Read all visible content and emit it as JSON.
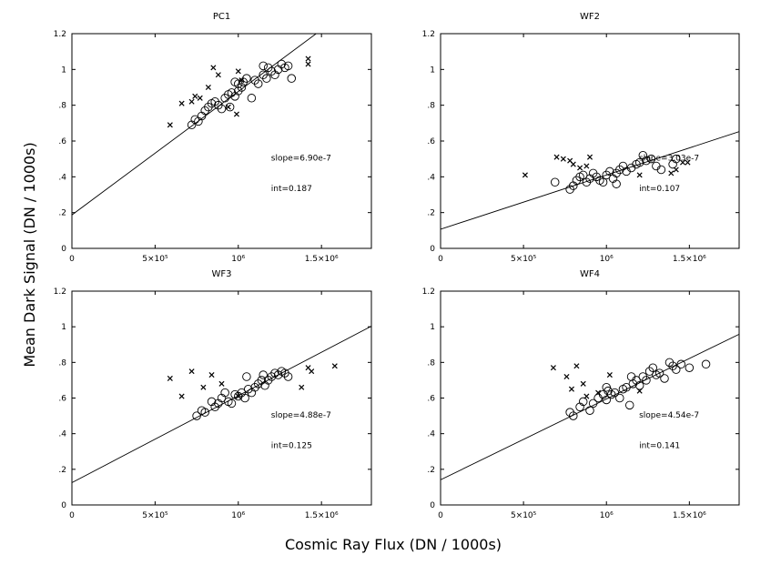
{
  "figure": {
    "xlabel": "Cosmic Ray Flux (DN / 1000s)",
    "ylabel": "Mean Dark Signal (DN / 1000s)"
  },
  "chart_data": [
    {
      "type": "scatter",
      "title": "PC1",
      "xlim": [
        0,
        1800000
      ],
      "ylim": [
        0,
        1.2
      ],
      "yticks": [
        "0",
        ".2",
        ".4",
        ".6",
        ".8",
        "1",
        "1.2"
      ],
      "xticks": [
        "0",
        "5×10⁵",
        "10⁶",
        "1.5×10⁶"
      ],
      "annotations": {
        "slope": "slope=6.90e-7",
        "int": "int=0.187"
      },
      "fit": {
        "slope": 6.9e-07,
        "intercept": 0.187
      },
      "series": [
        {
          "name": "circles",
          "marker": "circle",
          "points": [
            [
              720000,
              0.69
            ],
            [
              740000,
              0.72
            ],
            [
              760000,
              0.71
            ],
            [
              780000,
              0.74
            ],
            [
              800000,
              0.77
            ],
            [
              820000,
              0.79
            ],
            [
              840000,
              0.81
            ],
            [
              860000,
              0.82
            ],
            [
              880000,
              0.8
            ],
            [
              900000,
              0.78
            ],
            [
              920000,
              0.84
            ],
            [
              940000,
              0.86
            ],
            [
              960000,
              0.87
            ],
            [
              980000,
              0.85
            ],
            [
              1000000,
              0.88
            ],
            [
              1000000,
              0.92
            ],
            [
              1020000,
              0.9
            ],
            [
              1030000,
              0.93
            ],
            [
              1050000,
              0.95
            ],
            [
              1080000,
              0.84
            ],
            [
              1100000,
              0.94
            ],
            [
              1120000,
              0.92
            ],
            [
              1150000,
              0.97
            ],
            [
              1170000,
              0.95
            ],
            [
              1180000,
              1.01
            ],
            [
              1200000,
              0.99
            ],
            [
              1220000,
              0.97
            ],
            [
              1240000,
              1.0
            ],
            [
              1260000,
              1.03
            ],
            [
              1280000,
              1.01
            ],
            [
              1300000,
              1.02
            ],
            [
              1320000,
              0.95
            ],
            [
              950000,
              0.79
            ],
            [
              980000,
              0.93
            ],
            [
              1150000,
              1.02
            ]
          ]
        },
        {
          "name": "crosses",
          "marker": "x",
          "points": [
            [
              590000,
              0.69
            ],
            [
              660000,
              0.81
            ],
            [
              720000,
              0.82
            ],
            [
              740000,
              0.85
            ],
            [
              770000,
              0.84
            ],
            [
              820000,
              0.9
            ],
            [
              850000,
              1.01
            ],
            [
              880000,
              0.97
            ],
            [
              940000,
              0.79
            ],
            [
              990000,
              0.75
            ],
            [
              1000000,
              0.99
            ],
            [
              1020000,
              0.94
            ],
            [
              1420000,
              1.06
            ],
            [
              1420000,
              1.03
            ]
          ]
        }
      ]
    },
    {
      "type": "scatter",
      "title": "WF2",
      "xlim": [
        0,
        1800000
      ],
      "ylim": [
        0,
        1.2
      ],
      "yticks": [
        "0",
        ".2",
        ".4",
        ".6",
        ".8",
        "1",
        "1.2"
      ],
      "xticks": [
        "0",
        "5×10⁵",
        "10⁶",
        "1.5×10⁶"
      ],
      "annotations": {
        "slope": "slope=3.03e-7",
        "int": "int=0.107"
      },
      "fit": {
        "slope": 3.03e-07,
        "intercept": 0.107
      },
      "series": [
        {
          "name": "circles",
          "marker": "circle",
          "points": [
            [
              690000,
              0.37
            ],
            [
              780000,
              0.33
            ],
            [
              800000,
              0.35
            ],
            [
              820000,
              0.38
            ],
            [
              840000,
              0.4
            ],
            [
              860000,
              0.41
            ],
            [
              880000,
              0.37
            ],
            [
              900000,
              0.39
            ],
            [
              920000,
              0.42
            ],
            [
              940000,
              0.4
            ],
            [
              960000,
              0.38
            ],
            [
              980000,
              0.37
            ],
            [
              1000000,
              0.41
            ],
            [
              1020000,
              0.43
            ],
            [
              1040000,
              0.39
            ],
            [
              1060000,
              0.42
            ],
            [
              1080000,
              0.44
            ],
            [
              1100000,
              0.46
            ],
            [
              1120000,
              0.43
            ],
            [
              1150000,
              0.45
            ],
            [
              1180000,
              0.47
            ],
            [
              1200000,
              0.48
            ],
            [
              1220000,
              0.52
            ],
            [
              1240000,
              0.49
            ],
            [
              1270000,
              0.5
            ],
            [
              1300000,
              0.46
            ],
            [
              1330000,
              0.44
            ],
            [
              1400000,
              0.47
            ],
            [
              1420000,
              0.5
            ],
            [
              1060000,
              0.36
            ]
          ]
        },
        {
          "name": "crosses",
          "marker": "x",
          "points": [
            [
              510000,
              0.41
            ],
            [
              700000,
              0.51
            ],
            [
              740000,
              0.5
            ],
            [
              780000,
              0.49
            ],
            [
              800000,
              0.47
            ],
            [
              840000,
              0.45
            ],
            [
              880000,
              0.46
            ],
            [
              900000,
              0.51
            ],
            [
              1200000,
              0.41
            ],
            [
              1390000,
              0.42
            ],
            [
              1420000,
              0.44
            ],
            [
              1460000,
              0.48
            ],
            [
              1490000,
              0.48
            ]
          ]
        }
      ]
    },
    {
      "type": "scatter",
      "title": "WF3",
      "xlim": [
        0,
        1800000
      ],
      "ylim": [
        0,
        1.2
      ],
      "yticks": [
        "0",
        ".2",
        ".4",
        ".6",
        ".8",
        "1",
        "1.2"
      ],
      "xticks": [
        "0",
        "5×10⁵",
        "10⁶",
        "1.5×10⁶"
      ],
      "annotations": {
        "slope": "slope=4.88e-7",
        "int": "int=0.125"
      },
      "fit": {
        "slope": 4.88e-07,
        "intercept": 0.125
      },
      "series": [
        {
          "name": "circles",
          "marker": "circle",
          "points": [
            [
              750000,
              0.5
            ],
            [
              780000,
              0.53
            ],
            [
              800000,
              0.52
            ],
            [
              840000,
              0.58
            ],
            [
              860000,
              0.55
            ],
            [
              880000,
              0.57
            ],
            [
              900000,
              0.6
            ],
            [
              920000,
              0.63
            ],
            [
              940000,
              0.58
            ],
            [
              960000,
              0.57
            ],
            [
              980000,
              0.62
            ],
            [
              1000000,
              0.61
            ],
            [
              1020000,
              0.63
            ],
            [
              1040000,
              0.6
            ],
            [
              1060000,
              0.65
            ],
            [
              1080000,
              0.63
            ],
            [
              1100000,
              0.66
            ],
            [
              1120000,
              0.68
            ],
            [
              1140000,
              0.7
            ],
            [
              1160000,
              0.67
            ],
            [
              1180000,
              0.7
            ],
            [
              1200000,
              0.72
            ],
            [
              1220000,
              0.74
            ],
            [
              1240000,
              0.73
            ],
            [
              1260000,
              0.75
            ],
            [
              1280000,
              0.74
            ],
            [
              1300000,
              0.72
            ],
            [
              1050000,
              0.72
            ],
            [
              1150000,
              0.73
            ]
          ]
        },
        {
          "name": "crosses",
          "marker": "x",
          "points": [
            [
              590000,
              0.71
            ],
            [
              660000,
              0.61
            ],
            [
              720000,
              0.75
            ],
            [
              790000,
              0.66
            ],
            [
              840000,
              0.73
            ],
            [
              900000,
              0.68
            ],
            [
              1000000,
              0.61
            ],
            [
              1380000,
              0.66
            ],
            [
              1420000,
              0.77
            ],
            [
              1440000,
              0.75
            ],
            [
              1580000,
              0.78
            ]
          ]
        }
      ]
    },
    {
      "type": "scatter",
      "title": "WF4",
      "xlim": [
        0,
        1800000
      ],
      "ylim": [
        0,
        1.2
      ],
      "yticks": [
        "0",
        ".2",
        ".4",
        ".6",
        ".8",
        "1",
        "1.2"
      ],
      "xticks": [
        "0",
        "5×10⁵",
        "10⁶",
        "1.5×10⁶"
      ],
      "annotations": {
        "slope": "slope=4.54e-7",
        "int": "int=0.141"
      },
      "fit": {
        "slope": 4.54e-07,
        "intercept": 0.141
      },
      "series": [
        {
          "name": "circles",
          "marker": "circle",
          "points": [
            [
              780000,
              0.52
            ],
            [
              800000,
              0.5
            ],
            [
              840000,
              0.55
            ],
            [
              860000,
              0.58
            ],
            [
              900000,
              0.53
            ],
            [
              920000,
              0.57
            ],
            [
              950000,
              0.6
            ],
            [
              980000,
              0.62
            ],
            [
              1000000,
              0.59
            ],
            [
              1010000,
              0.64
            ],
            [
              1030000,
              0.62
            ],
            [
              1050000,
              0.63
            ],
            [
              1080000,
              0.6
            ],
            [
              1100000,
              0.65
            ],
            [
              1120000,
              0.66
            ],
            [
              1140000,
              0.56
            ],
            [
              1160000,
              0.68
            ],
            [
              1180000,
              0.7
            ],
            [
              1200000,
              0.67
            ],
            [
              1220000,
              0.72
            ],
            [
              1240000,
              0.7
            ],
            [
              1260000,
              0.75
            ],
            [
              1280000,
              0.77
            ],
            [
              1300000,
              0.73
            ],
            [
              1320000,
              0.74
            ],
            [
              1350000,
              0.71
            ],
            [
              1380000,
              0.8
            ],
            [
              1400000,
              0.78
            ],
            [
              1420000,
              0.76
            ],
            [
              1450000,
              0.79
            ],
            [
              1500000,
              0.77
            ],
            [
              1600000,
              0.79
            ],
            [
              1000000,
              0.66
            ],
            [
              1150000,
              0.72
            ]
          ]
        },
        {
          "name": "crosses",
          "marker": "x",
          "points": [
            [
              680000,
              0.77
            ],
            [
              760000,
              0.72
            ],
            [
              790000,
              0.65
            ],
            [
              820000,
              0.78
            ],
            [
              860000,
              0.68
            ],
            [
              880000,
              0.61
            ],
            [
              950000,
              0.63
            ],
            [
              1020000,
              0.73
            ],
            [
              1200000,
              0.64
            ]
          ]
        }
      ]
    }
  ]
}
